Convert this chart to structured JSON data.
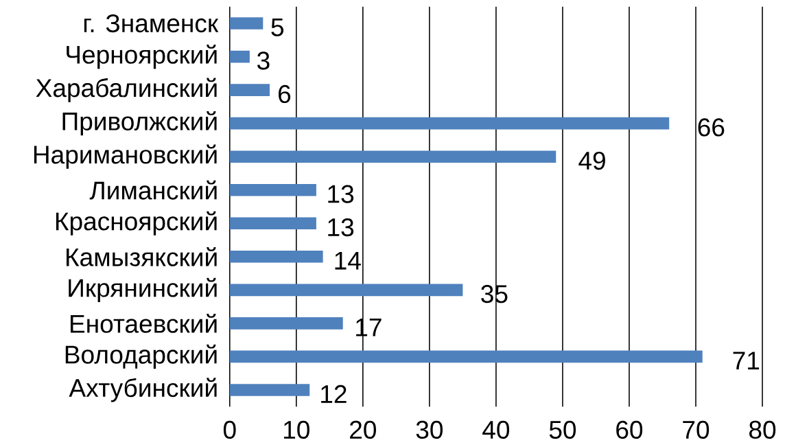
{
  "chart_data": {
    "type": "bar",
    "orientation": "horizontal",
    "categories": [
      "г. Знаменск",
      "Черноярский",
      "Харабалинский",
      "Приволжский",
      "Наримановский",
      "Лиманский",
      "Красноярский",
      "Камызякский",
      "Икрянинский",
      "Енотаевский",
      "Володарский",
      "Ахтубинский"
    ],
    "values": [
      5,
      3,
      6,
      66,
      49,
      13,
      13,
      14,
      35,
      17,
      71,
      12
    ],
    "color": "#4f81bd",
    "xlim": [
      0,
      80
    ],
    "xticks": [
      0,
      10,
      20,
      30,
      40,
      50,
      60,
      70,
      80
    ],
    "grid": "x",
    "data_labels": true
  }
}
